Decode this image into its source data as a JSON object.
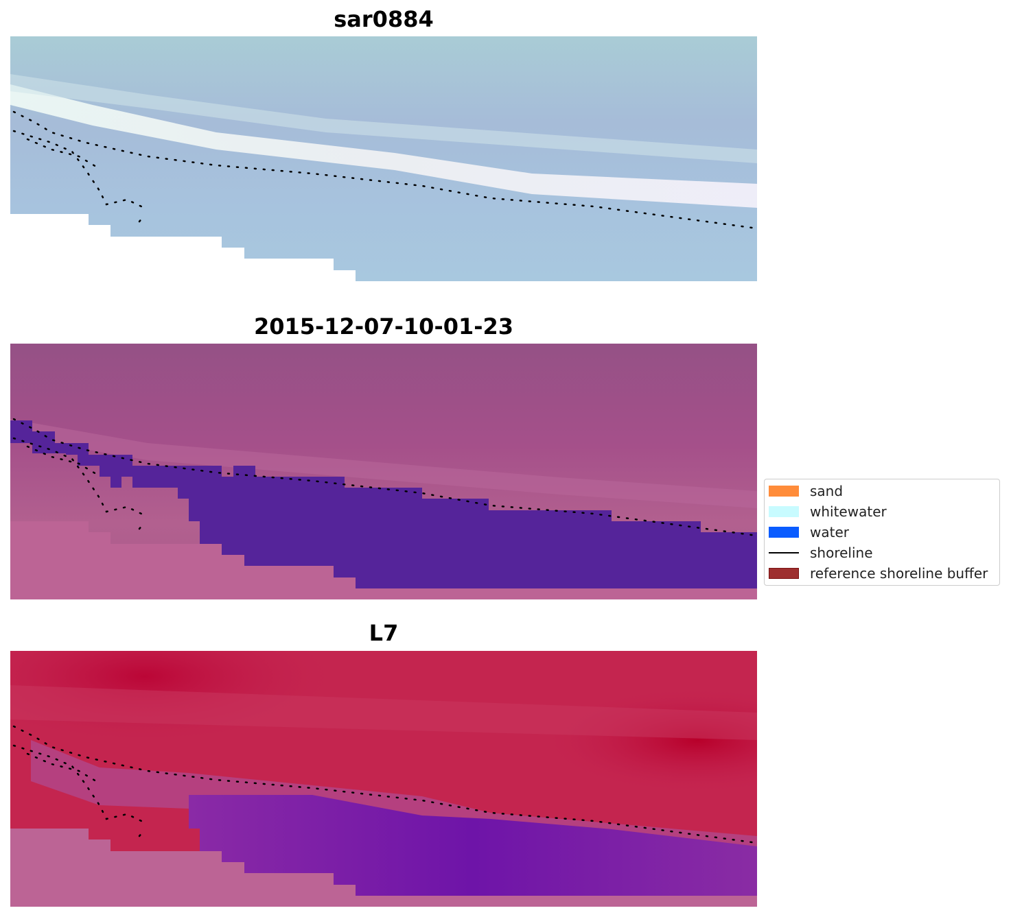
{
  "panels": [
    {
      "title": "sar0884"
    },
    {
      "title": "2015-12-07-10-01-23"
    },
    {
      "title": "L7"
    }
  ],
  "legend": {
    "items": [
      {
        "label": "sand",
        "type": "patch",
        "color": "#ff8c3a"
      },
      {
        "label": "whitewater",
        "type": "patch",
        "color": "#c8fbff"
      },
      {
        "label": "water",
        "type": "patch",
        "color": "#0a5cff"
      },
      {
        "label": "shoreline",
        "type": "line",
        "color": "#000000"
      },
      {
        "label": "reference shoreline buffer",
        "type": "patch",
        "color": "#9e2f2f"
      }
    ]
  },
  "colors": {
    "rgb_water": "#a9c6dd",
    "rgb_whitewater": "#eef8f4",
    "classified_background": "#9a4c8a",
    "classified_water": "#55249a",
    "classified_nodata": "#bc6495",
    "ndwi_high": "#c21f4f",
    "ndwi_low": "#7a1fa0",
    "nodata_white": "#ffffff"
  }
}
